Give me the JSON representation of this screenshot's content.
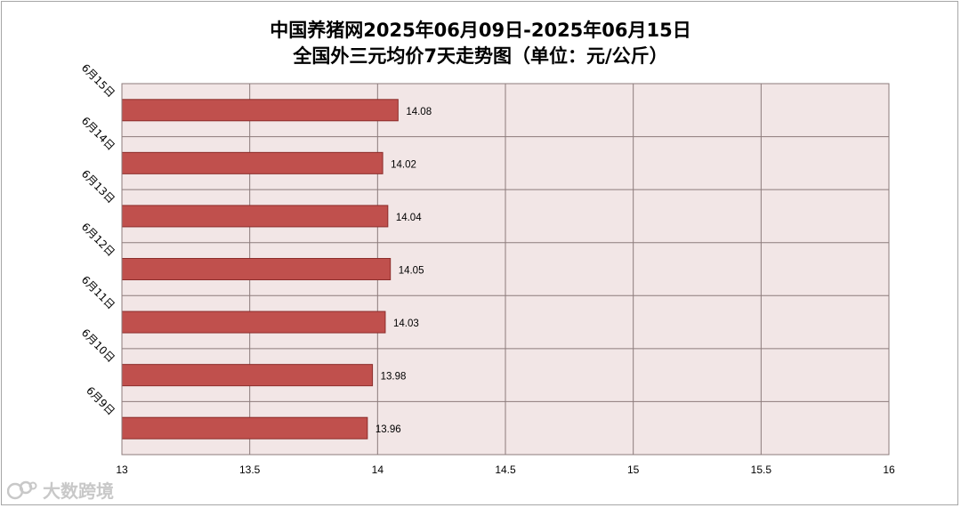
{
  "title_line1": "中国养猪网2025年06月09日-2025年06月15日",
  "title_line2": "全国外三元均价7天走势图（单位：元/公斤）",
  "watermark": "大数跨境",
  "colors": {
    "bar": "#c0504d",
    "bar_border": "#8c2d2b",
    "plot_bg": "#f2e6e6",
    "grid": "#8c7b7b"
  },
  "chart_data": {
    "type": "bar",
    "orientation": "horizontal",
    "categories": [
      "6月15日",
      "6月14日",
      "6月13日",
      "6月12日",
      "6月11日",
      "6月10日",
      "6月9日"
    ],
    "values": [
      14.08,
      14.02,
      14.04,
      14.05,
      14.03,
      13.98,
      13.96
    ],
    "data_labels": [
      "14.08",
      "14.02",
      "14.04",
      "14.05",
      "14.03",
      "13.98",
      "13.96"
    ],
    "xlim": [
      13,
      16
    ],
    "x_ticks": [
      "13",
      "13.5",
      "14",
      "14.5",
      "15",
      "15.5",
      "16"
    ],
    "x_tick_values": [
      13,
      13.5,
      14,
      14.5,
      15,
      15.5,
      16
    ],
    "grid": true,
    "legend": "none"
  }
}
